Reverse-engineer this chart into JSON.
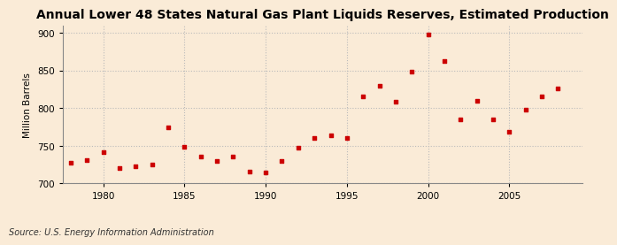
{
  "title": "Annual Lower 48 States Natural Gas Plant Liquids Reserves, Estimated Production",
  "ylabel": "Million Barrels",
  "source": "Source: U.S. Energy Information Administration",
  "background_color": "#faebd7",
  "marker_color": "#cc0000",
  "grid_color": "#bbbbbb",
  "years": [
    1978,
    1979,
    1980,
    1981,
    1982,
    1983,
    1984,
    1985,
    1986,
    1987,
    1988,
    1989,
    1990,
    1991,
    1992,
    1993,
    1994,
    1995,
    1996,
    1997,
    1998,
    1999,
    2000,
    2001,
    2002,
    2003,
    2004,
    2005,
    2006,
    2007,
    2008
  ],
  "values": [
    727,
    731,
    742,
    720,
    723,
    725,
    774,
    748,
    735,
    730,
    736,
    716,
    714,
    730,
    747,
    760,
    764,
    760,
    816,
    829,
    808,
    848,
    898,
    862,
    785,
    809,
    785,
    769,
    798,
    815,
    826
  ],
  "ylim": [
    700,
    910
  ],
  "xlim": [
    1977.5,
    2009.5
  ],
  "yticks": [
    700,
    750,
    800,
    850,
    900
  ],
  "xticks": [
    1980,
    1985,
    1990,
    1995,
    2000,
    2005
  ],
  "title_fontsize": 10,
  "label_fontsize": 7.5,
  "tick_fontsize": 7.5,
  "source_fontsize": 7
}
